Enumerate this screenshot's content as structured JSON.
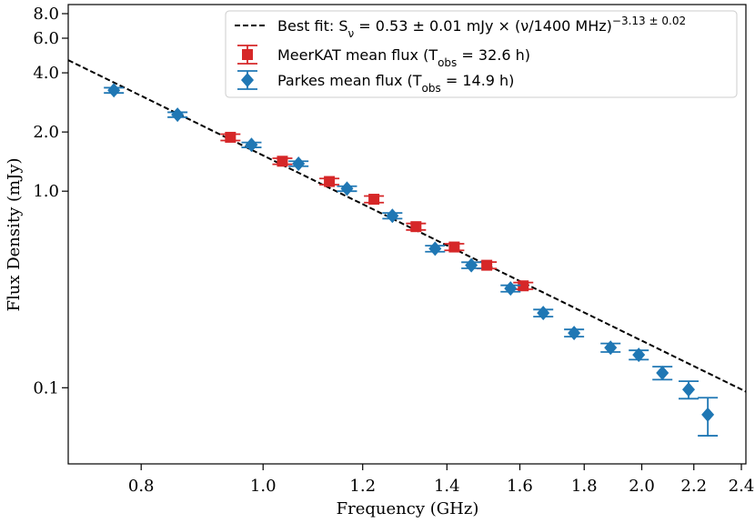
{
  "chart_data": {
    "type": "scatter",
    "xlabel": "Frequency (GHz)",
    "ylabel": "Flux Density (mJy)",
    "xscale": "log",
    "yscale": "log",
    "xlim": [
      0.7,
      2.42
    ],
    "ylim": [
      0.041,
      8.9
    ],
    "xticks": [
      0.8,
      {
        "value": 1,
        "label": "1.0"
      },
      1.2,
      1.4,
      1.6,
      1.8,
      {
        "value": 2,
        "label": "2.0"
      },
      2.2,
      2.4
    ],
    "yticks": [
      0.1,
      {
        "value": 1,
        "label": "1.0"
      },
      {
        "value": 2,
        "label": "2.0"
      },
      {
        "value": 4,
        "label": "4.0"
      },
      {
        "value": 6,
        "label": "6.0"
      },
      {
        "value": 8,
        "label": "8.0"
      }
    ],
    "legend": "upper right",
    "fit": {
      "name": [
        "Best fit: S",
        "ν",
        " = 0.53 ± 0.01 mJy × (ν/1400 MHz)",
        "−3.13 ± 0.02"
      ],
      "amplitude": 0.53,
      "reference": 1.4,
      "index": -3.13,
      "color": "#000000"
    },
    "series": [
      {
        "name": [
          "MeerKAT mean flux (T",
          "obs",
          " = 32.6 h)"
        ],
        "color": "#d62728",
        "marker": "square",
        "x": [
          0.942,
          1.036,
          1.129,
          1.225,
          1.323,
          1.419,
          1.506,
          1.61
        ],
        "values": [
          1.88,
          1.42,
          1.12,
          0.91,
          0.66,
          0.52,
          0.42,
          0.33
        ],
        "yerr": [
          0.07,
          0.05,
          0.04,
          0.035,
          0.025,
          0.02,
          0.016,
          0.013
        ]
      },
      {
        "name": [
          "Parkes mean flux (T",
          "obs",
          " = 14.9 h)"
        ],
        "color": "#1f77b4",
        "marker": "diamond",
        "x": [
          0.761,
          0.855,
          0.979,
          1.067,
          1.166,
          1.267,
          1.37,
          1.464,
          1.573,
          1.67,
          1.767,
          1.889,
          1.989,
          2.077,
          2.179,
          2.257
        ],
        "values": [
          3.26,
          2.45,
          1.72,
          1.38,
          1.03,
          0.75,
          0.51,
          0.42,
          0.32,
          0.24,
          0.19,
          0.16,
          0.147,
          0.119,
          0.098,
          0.073
        ],
        "yerr": [
          0.1,
          0.07,
          0.05,
          0.04,
          0.03,
          0.025,
          0.018,
          0.015,
          0.012,
          0.01,
          0.008,
          0.008,
          0.008,
          0.009,
          0.01,
          0.016
        ]
      }
    ]
  }
}
